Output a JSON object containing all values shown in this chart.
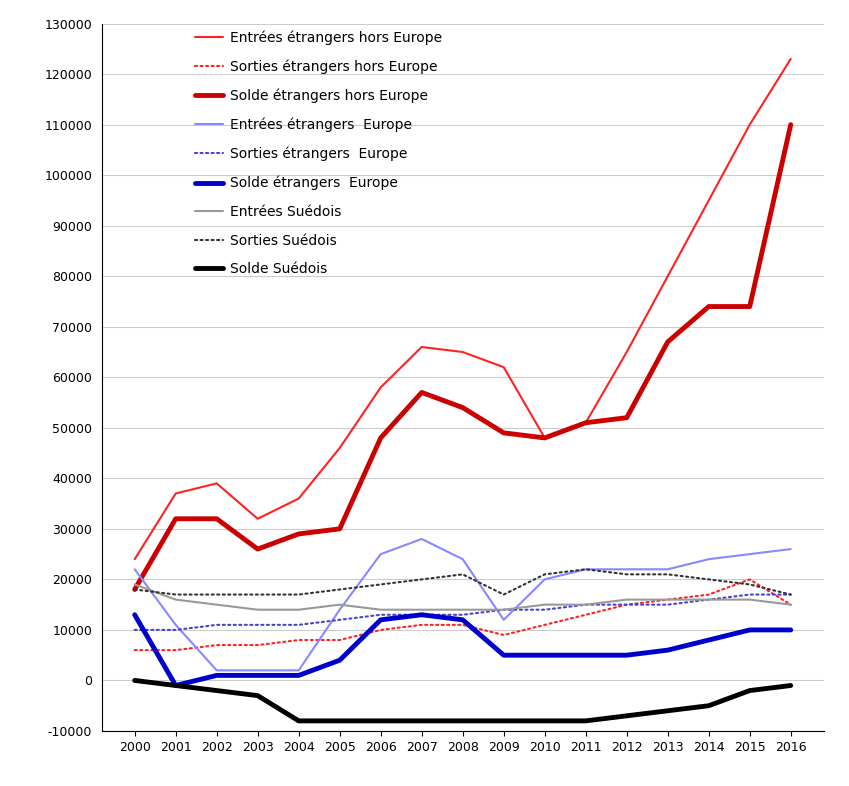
{
  "years": [
    2000,
    2001,
    2002,
    2003,
    2004,
    2005,
    2006,
    2007,
    2008,
    2009,
    2010,
    2011,
    2012,
    2013,
    2014,
    2015,
    2016
  ],
  "entrees_hors_europe": [
    24000,
    37000,
    39000,
    32000,
    36000,
    46000,
    58000,
    66000,
    65000,
    62000,
    48000,
    51000,
    65000,
    80000,
    95000,
    110000,
    123000
  ],
  "sorties_hors_europe": [
    6000,
    6000,
    7000,
    7000,
    8000,
    8000,
    10000,
    11000,
    11000,
    9000,
    11000,
    13000,
    15000,
    16000,
    17000,
    20000,
    15000
  ],
  "solde_hors_europe": [
    18000,
    32000,
    32000,
    26000,
    29000,
    30000,
    48000,
    57000,
    54000,
    49000,
    48000,
    51000,
    52000,
    67000,
    74000,
    74000,
    110000
  ],
  "entrees_europe": [
    22000,
    11000,
    2000,
    2000,
    2000,
    14000,
    25000,
    28000,
    24000,
    12000,
    20000,
    22000,
    22000,
    22000,
    24000,
    25000,
    26000
  ],
  "sorties_europe": [
    10000,
    10000,
    11000,
    11000,
    11000,
    12000,
    13000,
    13000,
    13000,
    14000,
    14000,
    15000,
    15000,
    15000,
    16000,
    17000,
    17000
  ],
  "solde_europe": [
    13000,
    -1000,
    1000,
    1000,
    1000,
    4000,
    12000,
    13000,
    12000,
    5000,
    5000,
    5000,
    5000,
    6000,
    8000,
    10000,
    10000
  ],
  "entrees_suedois": [
    19000,
    16000,
    15000,
    14000,
    14000,
    15000,
    14000,
    14000,
    14000,
    14000,
    15000,
    15000,
    16000,
    16000,
    16000,
    16000,
    15000
  ],
  "sorties_suedois": [
    18000,
    17000,
    17000,
    17000,
    17000,
    18000,
    19000,
    20000,
    21000,
    17000,
    21000,
    22000,
    21000,
    21000,
    20000,
    19000,
    17000
  ],
  "solde_suedois": [
    0,
    -1000,
    -2000,
    -3000,
    -8000,
    -8000,
    -8000,
    -8000,
    -8000,
    -8000,
    -8000,
    -8000,
    -7000,
    -6000,
    -5000,
    -2000,
    -1000
  ],
  "ylim": [
    -10000,
    130000
  ],
  "yticks": [
    -10000,
    0,
    10000,
    20000,
    30000,
    40000,
    50000,
    60000,
    70000,
    80000,
    90000,
    100000,
    110000,
    120000,
    130000
  ],
  "legend_labels": [
    "Entrées étrangers hors Europe",
    "Sorties étrangers hors Europe",
    "Solde étrangers hors Europe",
    "Entrées étrangers  Europe",
    "Sorties étrangers  Europe",
    "Solde étrangers  Europe",
    "Entrées Suédois",
    "Sorties Suédois",
    "Solde Suédois"
  ],
  "line_styles": {
    "entrees_hors_europe": {
      "color": "#FF2222",
      "lw": 1.5,
      "ls": "solid"
    },
    "sorties_hors_europe": {
      "color": "#FF2222",
      "lw": 1.5,
      "ls": "dotted"
    },
    "solde_hors_europe": {
      "color": "#CC0000",
      "lw": 3.5,
      "ls": "solid"
    },
    "entrees_europe": {
      "color": "#8888FF",
      "lw": 1.5,
      "ls": "solid"
    },
    "sorties_europe": {
      "color": "#4444CC",
      "lw": 1.5,
      "ls": "dotted"
    },
    "solde_europe": {
      "color": "#0000CC",
      "lw": 3.5,
      "ls": "solid"
    },
    "entrees_suedois": {
      "color": "#999999",
      "lw": 1.5,
      "ls": "solid"
    },
    "sorties_suedois": {
      "color": "#333333",
      "lw": 1.5,
      "ls": "dotted"
    },
    "solde_suedois": {
      "color": "#000000",
      "lw": 3.5,
      "ls": "solid"
    }
  },
  "figsize": [
    8.49,
    7.86
  ],
  "dpi": 100,
  "background_color": "#FFFFFF",
  "grid_color": "#CCCCCC",
  "legend_fontsize": 10,
  "tick_fontsize": 9
}
